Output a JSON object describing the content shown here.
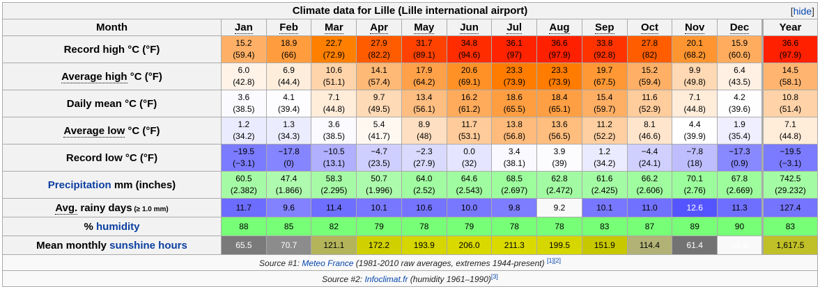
{
  "title": "Climate data for Lille (Lille international airport)",
  "hide_label": "hide",
  "header": {
    "month": "Month",
    "months": [
      "Jan",
      "Feb",
      "Mar",
      "Apr",
      "May",
      "Jun",
      "Jul",
      "Aug",
      "Sep",
      "Oct",
      "Nov",
      "Dec"
    ],
    "year": "Year"
  },
  "rows": [
    {
      "kind": "temp",
      "label": "Record high °C (°F)",
      "values": [
        "15.2",
        "18.9",
        "22.7",
        "27.9",
        "31.7",
        "34.8",
        "36.1",
        "36.6",
        "33.8",
        "27.8",
        "20.1",
        "15.9",
        "36.6"
      ],
      "sub": [
        "(59.4)",
        "(66)",
        "(72.9)",
        "(82.2)",
        "(89.1)",
        "(94.6)",
        "(97)",
        "(97.9)",
        "(92.8)",
        "(82)",
        "(68.2)",
        "(60.6)",
        "(97.9)"
      ]
    },
    {
      "kind": "temp",
      "label_link": "Average high",
      "label_rest": " °C (°F)",
      "values": [
        "6.0",
        "6.9",
        "10.6",
        "14.1",
        "17.9",
        "20.6",
        "23.3",
        "23.3",
        "19.7",
        "15.2",
        "9.9",
        "6.4",
        "14.5"
      ],
      "sub": [
        "(42.8)",
        "(44.4)",
        "(51.1)",
        "(57.4)",
        "(64.2)",
        "(69.1)",
        "(73.9)",
        "(73.9)",
        "(67.5)",
        "(59.4)",
        "(49.8)",
        "(43.5)",
        "(58.1)"
      ]
    },
    {
      "kind": "temp",
      "label": "Daily mean °C (°F)",
      "values": [
        "3.6",
        "4.1",
        "7.1",
        "9.7",
        "13.4",
        "16.2",
        "18.6",
        "18.4",
        "15.4",
        "11.6",
        "7.1",
        "4.2",
        "10.8"
      ],
      "sub": [
        "(38.5)",
        "(39.4)",
        "(44.8)",
        "(49.5)",
        "(56.1)",
        "(61.2)",
        "(65.5)",
        "(65.1)",
        "(59.7)",
        "(52.9)",
        "(44.8)",
        "(39.6)",
        "(51.4)"
      ]
    },
    {
      "kind": "temp",
      "label_link": "Average low",
      "label_rest": " °C (°F)",
      "values": [
        "1.2",
        "1.3",
        "3.6",
        "5.4",
        "8.9",
        "11.7",
        "13.8",
        "13.6",
        "11.2",
        "8.1",
        "4.4",
        "1.9",
        "7.1"
      ],
      "sub": [
        "(34.2)",
        "(34.3)",
        "(38.5)",
        "(41.7)",
        "(48)",
        "(53.1)",
        "(56.8)",
        "(56.5)",
        "(52.2)",
        "(46.6)",
        "(39.9)",
        "(35.4)",
        "(44.8)"
      ]
    },
    {
      "kind": "temp",
      "label": "Record low °C (°F)",
      "values": [
        "−19.5",
        "−17.8",
        "−10.5",
        "−4.7",
        "−2.3",
        "0.0",
        "3.4",
        "3.9",
        "1.2",
        "−4.4",
        "−7.8",
        "−17.3",
        "−19.5"
      ],
      "sub": [
        "(−3.1)",
        "(0)",
        "(13.1)",
        "(23.5)",
        "(27.9)",
        "(32)",
        "(38.1)",
        "(39)",
        "(34.2)",
        "(24.1)",
        "(18)",
        "(0.9)",
        "(−3.1)"
      ]
    },
    {
      "kind": "precip",
      "label_blue": "Precipitation",
      "label_rest": " mm (inches)",
      "values": [
        "60.5",
        "47.4",
        "58.3",
        "50.7",
        "64.0",
        "64.6",
        "68.5",
        "62.8",
        "61.6",
        "66.2",
        "70.1",
        "67.8",
        "742.5"
      ],
      "sub": [
        "(2.382)",
        "(1.866)",
        "(2.295)",
        "(1.996)",
        "(2.52)",
        "(2.543)",
        "(2.697)",
        "(2.472)",
        "(2.425)",
        "(2.606)",
        "(2.76)",
        "(2.669)",
        "(29.232)"
      ]
    },
    {
      "kind": "rainy",
      "label_link": "Avg.",
      "label_rest": " rainy days",
      "label_small": " (≥ 1.0 mm)",
      "values": [
        "11.7",
        "9.6",
        "11.4",
        "10.1",
        "10.6",
        "10.0",
        "9.8",
        "9.2",
        "10.1",
        "11.0",
        "12.6",
        "11.3",
        "127.4"
      ]
    },
    {
      "kind": "humidity",
      "label_pre": "% ",
      "label_blue": "humidity",
      "values": [
        "88",
        "85",
        "82",
        "79",
        "78",
        "79",
        "78",
        "78",
        "83",
        "87",
        "89",
        "90",
        "83"
      ]
    },
    {
      "kind": "sun",
      "label_pre": "Mean monthly ",
      "label_blue": "sunshine hours",
      "values": [
        "65.5",
        "70.7",
        "121.1",
        "172.2",
        "193.9",
        "206.0",
        "211.3",
        "199.5",
        "151.9",
        "114.4",
        "61.4",
        "49.6",
        "1,617.5"
      ]
    }
  ],
  "sources": [
    {
      "prefix": "Source #1: ",
      "link": "Meteo France",
      "rest": " (1981-2010 raw averages, extremes 1944-present) ",
      "refs": "[1][2]"
    },
    {
      "prefix": "Source #2: ",
      "link": "Infoclimat.fr",
      "rest": " (humidity 1961–1990)",
      "refs": "[3]"
    }
  ]
}
